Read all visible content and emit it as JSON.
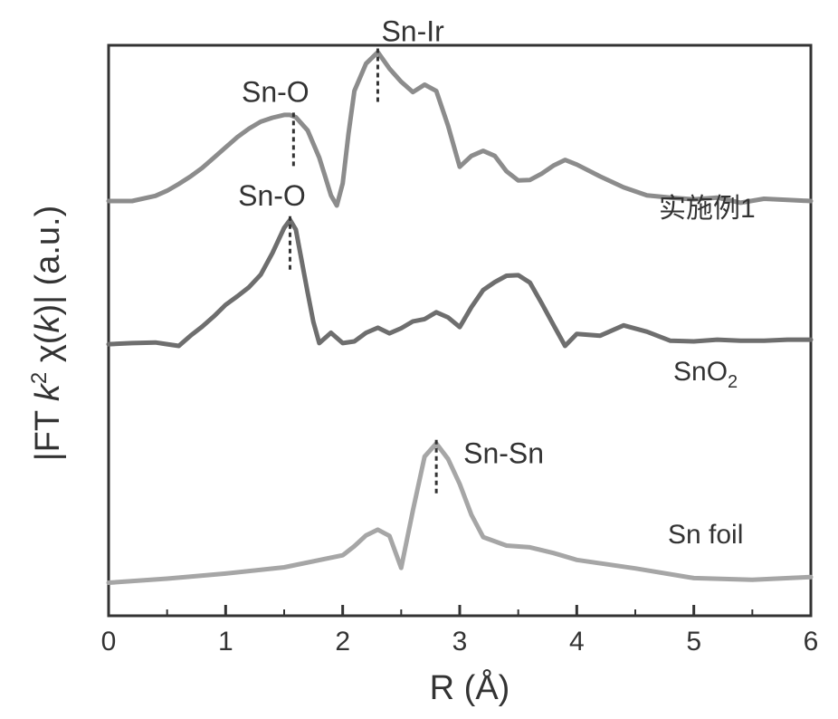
{
  "chart_data": {
    "type": "line",
    "xlabel": "R (Å)",
    "ylabel": "|FT k² χ(k)| (a.u.)",
    "ylabel_parts": {
      "pre": "|FT ",
      "k": "k",
      "exp": "2",
      "post": " χ(",
      "k2": "k",
      "end": ")| (a.u.)"
    },
    "xlim": [
      0,
      6
    ],
    "ylim": [
      0,
      1
    ],
    "x_ticks": [
      "0",
      "1",
      "2",
      "3",
      "4",
      "5",
      "6"
    ],
    "grid": false,
    "series": [
      {
        "name": "实施例1",
        "color": "#8c8c8c",
        "x": [
          0,
          0.2,
          0.4,
          0.5,
          0.6,
          0.7,
          0.8,
          0.9,
          1.0,
          1.1,
          1.2,
          1.3,
          1.4,
          1.5,
          1.55,
          1.6,
          1.7,
          1.8,
          1.85,
          1.9,
          1.95,
          2.0,
          2.05,
          2.1,
          2.2,
          2.3,
          2.4,
          2.5,
          2.6,
          2.7,
          2.8,
          2.9,
          3.0,
          3.1,
          3.2,
          3.3,
          3.4,
          3.5,
          3.6,
          3.7,
          3.8,
          3.9,
          4.0,
          4.2,
          4.4,
          4.6,
          4.8,
          5.0,
          5.2,
          5.4,
          5.6,
          5.8,
          6.0
        ],
        "y": [
          0.727,
          0.727,
          0.736,
          0.745,
          0.757,
          0.77,
          0.785,
          0.803,
          0.821,
          0.839,
          0.854,
          0.866,
          0.873,
          0.878,
          0.878,
          0.874,
          0.851,
          0.803,
          0.77,
          0.737,
          0.719,
          0.758,
          0.845,
          0.92,
          0.968,
          0.988,
          0.959,
          0.936,
          0.918,
          0.931,
          0.92,
          0.859,
          0.787,
          0.806,
          0.815,
          0.806,
          0.779,
          0.763,
          0.764,
          0.775,
          0.789,
          0.799,
          0.791,
          0.77,
          0.751,
          0.737,
          0.733,
          0.73,
          0.733,
          0.724,
          0.731,
          0.729,
          0.727
        ]
      },
      {
        "name": "SnO₂",
        "color": "#6e6e6e",
        "x": [
          0,
          0.2,
          0.4,
          0.5,
          0.6,
          0.7,
          0.8,
          0.9,
          1.0,
          1.1,
          1.2,
          1.3,
          1.4,
          1.5,
          1.55,
          1.6,
          1.7,
          1.75,
          1.8,
          1.9,
          2.0,
          2.1,
          2.2,
          2.3,
          2.4,
          2.5,
          2.6,
          2.7,
          2.8,
          2.9,
          3.0,
          3.1,
          3.2,
          3.3,
          3.4,
          3.5,
          3.6,
          3.7,
          3.8,
          3.9,
          4.0,
          4.2,
          4.4,
          4.6,
          4.8,
          5.0,
          5.2,
          5.4,
          5.6,
          5.8,
          6.0
        ],
        "y": [
          0.476,
          0.478,
          0.479,
          0.476,
          0.473,
          0.491,
          0.507,
          0.525,
          0.545,
          0.56,
          0.576,
          0.598,
          0.636,
          0.68,
          0.694,
          0.677,
          0.567,
          0.515,
          0.478,
          0.496,
          0.478,
          0.481,
          0.496,
          0.505,
          0.495,
          0.504,
          0.516,
          0.52,
          0.532,
          0.523,
          0.506,
          0.541,
          0.571,
          0.585,
          0.596,
          0.597,
          0.584,
          0.548,
          0.51,
          0.473,
          0.494,
          0.491,
          0.509,
          0.498,
          0.482,
          0.481,
          0.484,
          0.482,
          0.482,
          0.484,
          0.484
        ]
      },
      {
        "name": "Sn foil",
        "color": "#a6a6a6",
        "x": [
          0,
          0.5,
          1.0,
          1.5,
          2.0,
          2.1,
          2.2,
          2.3,
          2.4,
          2.5,
          2.6,
          2.7,
          2.8,
          2.9,
          3.0,
          3.1,
          3.2,
          3.4,
          3.6,
          3.8,
          4.0,
          4.5,
          5.0,
          5.5,
          6.0
        ],
        "y": [
          0.058,
          0.065,
          0.074,
          0.085,
          0.106,
          0.122,
          0.141,
          0.151,
          0.14,
          0.084,
          0.185,
          0.279,
          0.302,
          0.275,
          0.231,
          0.177,
          0.138,
          0.123,
          0.12,
          0.11,
          0.098,
          0.083,
          0.066,
          0.063,
          0.068
        ]
      }
    ],
    "peak_annotations": [
      {
        "text": "Sn-Ir",
        "x": 2.3,
        "series": 0
      },
      {
        "text": "Sn-O",
        "x": 1.58,
        "series": 0
      },
      {
        "text": "Sn-O",
        "x": 1.55,
        "series": 1
      },
      {
        "text": "Sn-Sn",
        "x": 2.8,
        "series": 2
      }
    ],
    "series_labels": [
      "实施例1",
      "SnO₂",
      "Sn foil"
    ]
  }
}
